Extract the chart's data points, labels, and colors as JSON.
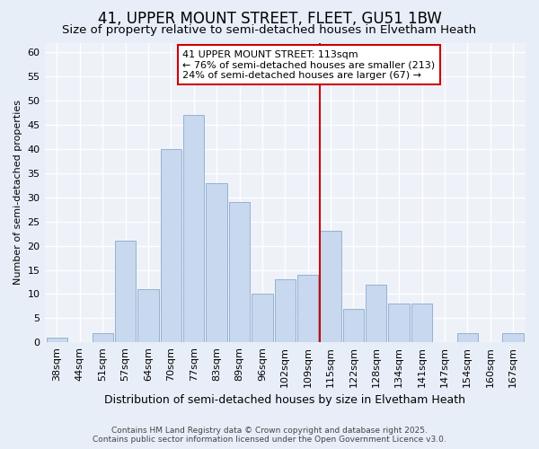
{
  "title": "41, UPPER MOUNT STREET, FLEET, GU51 1BW",
  "subtitle": "Size of property relative to semi-detached houses in Elvetham Heath",
  "xlabel": "Distribution of semi-detached houses by size in Elvetham Heath",
  "ylabel": "Number of semi-detached properties",
  "categories": [
    "38sqm",
    "44sqm",
    "51sqm",
    "57sqm",
    "64sqm",
    "70sqm",
    "77sqm",
    "83sqm",
    "89sqm",
    "96sqm",
    "102sqm",
    "109sqm",
    "115sqm",
    "122sqm",
    "128sqm",
    "134sqm",
    "141sqm",
    "147sqm",
    "154sqm",
    "160sqm",
    "167sqm"
  ],
  "values": [
    1,
    0,
    2,
    21,
    11,
    40,
    47,
    33,
    29,
    10,
    13,
    14,
    23,
    7,
    12,
    8,
    8,
    0,
    2,
    0,
    2
  ],
  "bar_color": "#c8d8ee",
  "bar_edge_color": "#88aacc",
  "vline_index": 12,
  "vline_color": "#cc0000",
  "annotation_text": "41 UPPER MOUNT STREET: 113sqm\n← 76% of semi-detached houses are smaller (213)\n24% of semi-detached houses are larger (67) →",
  "annotation_box_color": "#cc0000",
  "ylim": [
    0,
    62
  ],
  "yticks": [
    0,
    5,
    10,
    15,
    20,
    25,
    30,
    35,
    40,
    45,
    50,
    55,
    60
  ],
  "bg_color": "#e8eef8",
  "plot_bg_color": "#eef2f8",
  "grid_color": "#ffffff",
  "footer_text": "Contains HM Land Registry data © Crown copyright and database right 2025.\nContains public sector information licensed under the Open Government Licence v3.0.",
  "title_fontsize": 12,
  "subtitle_fontsize": 9.5,
  "xlabel_fontsize": 9,
  "ylabel_fontsize": 8,
  "tick_fontsize": 8,
  "footer_fontsize": 6.5
}
